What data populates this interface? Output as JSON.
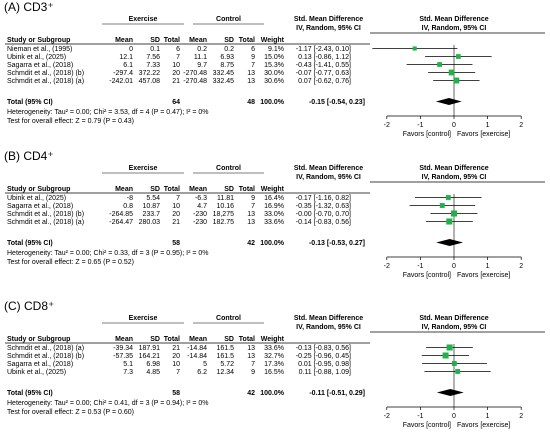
{
  "chart_data": [
    {
      "type": "forest",
      "panel_label": "(A) CD3⁺",
      "header": {
        "group1": "Exercise",
        "group2": "Control",
        "smd_title": "Std. Mean Difference",
        "smd_method": "IV, Random, 95% CI",
        "plot_title": "Std. Mean Difference",
        "plot_method": "IV, Random, 95% CI",
        "columns": [
          "Study or Subgroup",
          "Mean",
          "SD",
          "Total",
          "Mean",
          "SD",
          "Total",
          "Weight"
        ]
      },
      "studies": [
        {
          "name": "Nieman et al., (1995)",
          "ex_mean": "0",
          "ex_sd": "0.1",
          "ex_total": "6",
          "ct_mean": "0.2",
          "ct_sd": "0.2",
          "ct_total": "6",
          "weight": "9.1%",
          "ci_text": "-1.17 [-2.43, 0.10]",
          "smd": -1.17,
          "lo": -2.43,
          "hi": 0.1
        },
        {
          "name": "Ubink et al., (2025)",
          "ex_mean": "12.1",
          "ex_sd": "7.56",
          "ex_total": "7",
          "ct_mean": "11.1",
          "ct_sd": "6.93",
          "ct_total": "9",
          "weight": "15.0%",
          "ci_text": "0.13 [-0.86, 1.12]",
          "smd": 0.13,
          "lo": -0.86,
          "hi": 1.12
        },
        {
          "name": "Sagarra et al., (2018)",
          "ex_mean": "6.1",
          "ex_sd": "7.33",
          "ex_total": "10",
          "ct_mean": "9.7",
          "ct_sd": "8.75",
          "ct_total": "7",
          "weight": "15.3%",
          "ci_text": "-0.43 [-1.41, 0.55]",
          "smd": -0.43,
          "lo": -1.41,
          "hi": 0.55
        },
        {
          "name": "Schmdit et al., (2018) (b)",
          "ex_mean": "-297.4",
          "ex_sd": "372.22",
          "ex_total": "20",
          "ct_mean": "-270.48",
          "ct_sd": "332.45",
          "ct_total": "13",
          "weight": "30.0%",
          "ci_text": "-0.07 [-0.77, 0.63]",
          "smd": -0.07,
          "lo": -0.77,
          "hi": 0.63
        },
        {
          "name": "Schmdit et al., (2018) (a)",
          "ex_mean": "-242.01",
          "ex_sd": "457.08",
          "ex_total": "21",
          "ct_mean": "-270.48",
          "ct_sd": "332.45",
          "ct_total": "13",
          "weight": "30.6%",
          "ci_text": "0.07 [-0.62, 0.76]",
          "smd": 0.07,
          "lo": -0.62,
          "hi": 0.76
        }
      ],
      "total": {
        "label": "Total (95% CI)",
        "ex_total": "64",
        "ct_total": "48",
        "weight": "100.0%",
        "ci_text": "-0.15 [-0.54, 0.23]",
        "smd": -0.15,
        "lo": -0.54,
        "hi": 0.23
      },
      "heterogeneity": "Heterogeneity: Tau² = 0.00; Chi² = 3.53, df = 4 (P = 0.47); I² = 0%",
      "overall": "Test for overall effect: Z = 0.79 (P = 0.43)",
      "axis": {
        "ticks": [
          -2,
          -1,
          0,
          1,
          2
        ],
        "tick_labels": [
          "-2",
          "-1",
          "0",
          "1",
          "2"
        ],
        "range": [
          -2.5,
          2.5
        ]
      },
      "favors_left": "Favors [control]",
      "favors_right": "Favors [exercise]"
    },
    {
      "type": "forest",
      "panel_label": "(B) CD4⁺",
      "header": {
        "group1": "Exercise",
        "group2": "Control",
        "smd_title": "Std. Mean Difference",
        "smd_method": "IV, Random, 95% CI",
        "plot_title": "Std. Mean Difference",
        "plot_method": "IV, Random, 95% CI",
        "columns": [
          "Study or Subgroup",
          "Mean",
          "SD",
          "Total",
          "Mean",
          "SD",
          "Total",
          "Weight"
        ]
      },
      "studies": [
        {
          "name": "Ubink et al., (2025)",
          "ex_mean": "-8",
          "ex_sd": "5.54",
          "ex_total": "7",
          "ct_mean": "-6.3",
          "ct_sd": "11.81",
          "ct_total": "9",
          "weight": "16.4%",
          "ci_text": "-0.17 [-1.16, 0.82]",
          "smd": -0.17,
          "lo": -1.16,
          "hi": 0.82
        },
        {
          "name": "Sagarra et al., (2018)",
          "ex_mean": "0.8",
          "ex_sd": "10.87",
          "ex_total": "10",
          "ct_mean": "4.7",
          "ct_sd": "10.16",
          "ct_total": "7",
          "weight": "16.9%",
          "ci_text": "-0.35 [-1.32, 0.63]",
          "smd": -0.35,
          "lo": -1.32,
          "hi": 0.63
        },
        {
          "name": "Schmdit et al., (2018) (b)",
          "ex_mean": "-264.85",
          "ex_sd": "233.7",
          "ex_total": "20",
          "ct_mean": "-230",
          "ct_sd": "18,275",
          "ct_total": "13",
          "weight": "33.0%",
          "ci_text": "-0.00 [-0.70, 0.70]",
          "smd": 0.0,
          "lo": -0.7,
          "hi": 0.7
        },
        {
          "name": "Schmdit et al., (2018) (a)",
          "ex_mean": "-264.47",
          "ex_sd": "280.03",
          "ex_total": "21",
          "ct_mean": "-230",
          "ct_sd": "182.75",
          "ct_total": "13",
          "weight": "33.6%",
          "ci_text": "-0.14 [-0.83, 0.56]",
          "smd": -0.14,
          "lo": -0.83,
          "hi": 0.56
        }
      ],
      "total": {
        "label": "Total (95% CI)",
        "ex_total": "58",
        "ct_total": "42",
        "weight": "100.0%",
        "ci_text": "-0.13 [-0.53, 0.27]",
        "smd": -0.13,
        "lo": -0.53,
        "hi": 0.27
      },
      "heterogeneity": "Heterogeneity: Tau² = 0.00; Chi² = 0.33, df = 3 (P = 0.95); I² = 0%",
      "overall": "Test for overall effect: Z = 0.65 (P = 0.52)",
      "axis": {
        "ticks": [
          -2,
          -1,
          0,
          1,
          2
        ],
        "tick_labels": [
          "-2",
          "-1",
          "0",
          "1",
          "2"
        ],
        "range": [
          -2.5,
          2.5
        ]
      },
      "favors_left": "Favors [control]",
      "favors_right": "Favors [exercise]"
    },
    {
      "type": "forest",
      "panel_label": "(C) CD8⁺",
      "header": {
        "group1": "Exercise",
        "group2": "Control",
        "smd_title": "Std. Mean Difference",
        "smd_method": "IV, Random, 95% CI",
        "plot_title": "Std. Mean Difference",
        "plot_method": "IV, Random, 95% CI",
        "columns": [
          "Study or Subgroup",
          "Mean",
          "SD",
          "Total",
          "Mean",
          "SD",
          "Total",
          "Weight"
        ]
      },
      "studies": [
        {
          "name": "Schmdit et al., (2018) (a)",
          "ex_mean": "-39.34",
          "ex_sd": "187.91",
          "ex_total": "21",
          "ct_mean": "-14.84",
          "ct_sd": "161.5",
          "ct_total": "13",
          "weight": "33.6%",
          "ci_text": "-0.13 [-0.83, 0.56]",
          "smd": -0.13,
          "lo": -0.83,
          "hi": 0.56
        },
        {
          "name": "Schmdit et al., (2018) (b)",
          "ex_mean": "-57.35",
          "ex_sd": "164.21",
          "ex_total": "20",
          "ct_mean": "-14.84",
          "ct_sd": "161.5",
          "ct_total": "13",
          "weight": "32.7%",
          "ci_text": "-0.25 [-0.96, 0.45]",
          "smd": -0.25,
          "lo": -0.96,
          "hi": 0.45
        },
        {
          "name": "Sagarra et al., (2018)",
          "ex_mean": "5.1",
          "ex_sd": "6.98",
          "ex_total": "10",
          "ct_mean": "5",
          "ct_sd": "5.72",
          "ct_total": "7",
          "weight": "17.3%",
          "ci_text": "0.01 [-0.95, 0.98]",
          "smd": 0.01,
          "lo": -0.95,
          "hi": 0.98
        },
        {
          "name": "Ubink et al., (2025)",
          "ex_mean": "7.3",
          "ex_sd": "4.85",
          "ex_total": "7",
          "ct_mean": "6.2",
          "ct_sd": "12.34",
          "ct_total": "9",
          "weight": "16.5%",
          "ci_text": "0.11 [-0.88, 1.09]",
          "smd": 0.11,
          "lo": -0.88,
          "hi": 1.09
        }
      ],
      "total": {
        "label": "Total (95% CI)",
        "ex_total": "58",
        "ct_total": "42",
        "weight": "100.0%",
        "ci_text": "-0.11 [-0.51, 0.29]",
        "smd": -0.11,
        "lo": -0.51,
        "hi": 0.29
      },
      "heterogeneity": "Heterogeneity: Tau² = 0.00; Chi² = 0.41, df = 3 (P = 0.94); I² = 0%",
      "overall": "Test for overall effect: Z = 0.53 (P = 0.60)",
      "axis": {
        "ticks": [
          -2,
          -1,
          0,
          1,
          2
        ],
        "tick_labels": [
          "-2",
          "-1",
          "0",
          "1",
          "2"
        ],
        "range": [
          -2.5,
          2.5
        ]
      },
      "favors_left": "Favors [control]",
      "favors_right": "Favors [exercise]"
    }
  ],
  "colors": {
    "square": "#22b04b",
    "diamond": "#000000",
    "rule": "#000000"
  }
}
